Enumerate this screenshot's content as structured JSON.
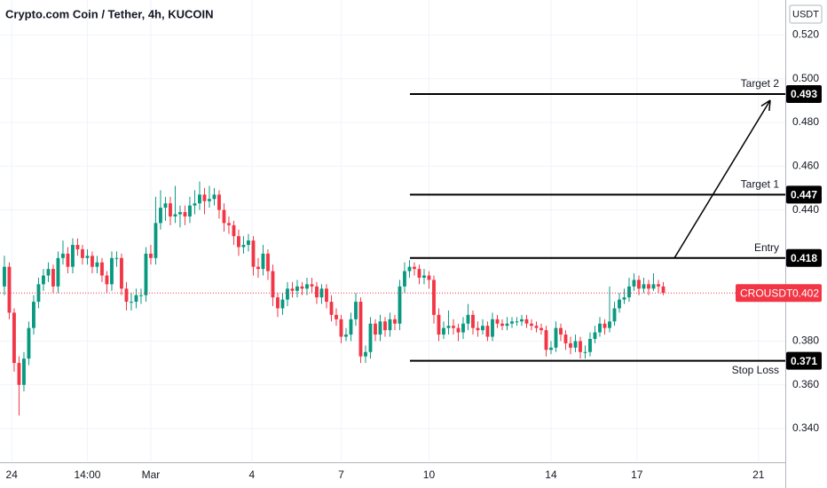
{
  "chart_data": {
    "type": "candlestick",
    "title": "Crypto.com Coin / Tether, 4h, KUCOIN",
    "currency": "USDT",
    "up_color": "#089981",
    "down_color": "#f23645",
    "grid": true,
    "candles": [
      [
        0.405,
        0.419,
        0.401,
        0.414
      ],
      [
        0.414,
        0.416,
        0.39,
        0.393
      ],
      [
        0.393,
        0.395,
        0.366,
        0.37
      ],
      [
        0.37,
        0.373,
        0.346,
        0.36
      ],
      [
        0.36,
        0.375,
        0.357,
        0.372
      ],
      [
        0.372,
        0.389,
        0.369,
        0.386
      ],
      [
        0.386,
        0.401,
        0.383,
        0.398
      ],
      [
        0.398,
        0.409,
        0.395,
        0.406
      ],
      [
        0.406,
        0.413,
        0.403,
        0.41
      ],
      [
        0.41,
        0.416,
        0.407,
        0.413
      ],
      [
        0.413,
        0.415,
        0.402,
        0.405
      ],
      [
        0.405,
        0.421,
        0.402,
        0.418
      ],
      [
        0.418,
        0.426,
        0.415,
        0.42
      ],
      [
        0.42,
        0.423,
        0.411,
        0.414
      ],
      [
        0.414,
        0.427,
        0.411,
        0.424
      ],
      [
        0.424,
        0.427,
        0.419,
        0.422
      ],
      [
        0.422,
        0.424,
        0.415,
        0.418
      ],
      [
        0.418,
        0.422,
        0.415,
        0.419
      ],
      [
        0.419,
        0.421,
        0.411,
        0.414
      ],
      [
        0.414,
        0.419,
        0.411,
        0.416
      ],
      [
        0.416,
        0.418,
        0.407,
        0.41
      ],
      [
        0.41,
        0.412,
        0.402,
        0.406
      ],
      [
        0.406,
        0.421,
        0.403,
        0.418
      ],
      [
        0.418,
        0.421,
        0.414,
        0.418
      ],
      [
        0.418,
        0.42,
        0.401,
        0.404
      ],
      [
        0.404,
        0.407,
        0.394,
        0.398
      ],
      [
        0.398,
        0.402,
        0.394,
        0.398
      ],
      [
        0.398,
        0.404,
        0.395,
        0.401
      ],
      [
        0.401,
        0.404,
        0.397,
        0.401
      ],
      [
        0.401,
        0.423,
        0.398,
        0.42
      ],
      [
        0.42,
        0.424,
        0.415,
        0.418
      ],
      [
        0.418,
        0.446,
        0.415,
        0.434
      ],
      [
        0.434,
        0.449,
        0.431,
        0.441
      ],
      [
        0.441,
        0.446,
        0.435,
        0.443
      ],
      [
        0.443,
        0.446,
        0.433,
        0.437
      ],
      [
        0.437,
        0.451,
        0.434,
        0.438
      ],
      [
        0.438,
        0.442,
        0.432,
        0.439
      ],
      [
        0.439,
        0.442,
        0.433,
        0.437
      ],
      [
        0.437,
        0.446,
        0.434,
        0.442
      ],
      [
        0.442,
        0.449,
        0.438,
        0.443
      ],
      [
        0.443,
        0.453,
        0.44,
        0.447
      ],
      [
        0.447,
        0.45,
        0.438,
        0.444
      ],
      [
        0.444,
        0.451,
        0.441,
        0.445
      ],
      [
        0.445,
        0.45,
        0.442,
        0.447
      ],
      [
        0.447,
        0.449,
        0.436,
        0.44
      ],
      [
        0.44,
        0.443,
        0.43,
        0.434
      ],
      [
        0.434,
        0.437,
        0.429,
        0.433
      ],
      [
        0.433,
        0.435,
        0.424,
        0.428
      ],
      [
        0.428,
        0.431,
        0.419,
        0.423
      ],
      [
        0.423,
        0.428,
        0.42,
        0.424
      ],
      [
        0.424,
        0.429,
        0.421,
        0.426
      ],
      [
        0.426,
        0.428,
        0.41,
        0.414
      ],
      [
        0.414,
        0.418,
        0.409,
        0.413
      ],
      [
        0.413,
        0.424,
        0.41,
        0.42
      ],
      [
        0.42,
        0.422,
        0.408,
        0.412
      ],
      [
        0.412,
        0.415,
        0.396,
        0.4
      ],
      [
        0.4,
        0.402,
        0.391,
        0.395
      ],
      [
        0.395,
        0.402,
        0.392,
        0.399
      ],
      [
        0.399,
        0.407,
        0.396,
        0.404
      ],
      [
        0.404,
        0.407,
        0.4,
        0.403
      ],
      [
        0.403,
        0.408,
        0.4,
        0.405
      ],
      [
        0.405,
        0.407,
        0.401,
        0.404
      ],
      [
        0.404,
        0.409,
        0.401,
        0.406
      ],
      [
        0.406,
        0.409,
        0.402,
        0.405
      ],
      [
        0.405,
        0.407,
        0.397,
        0.4
      ],
      [
        0.4,
        0.406,
        0.397,
        0.404
      ],
      [
        0.404,
        0.406,
        0.395,
        0.398
      ],
      [
        0.398,
        0.401,
        0.389,
        0.392
      ],
      [
        0.392,
        0.395,
        0.387,
        0.39
      ],
      [
        0.39,
        0.392,
        0.379,
        0.382
      ],
      [
        0.382,
        0.386,
        0.38,
        0.383
      ],
      [
        0.383,
        0.393,
        0.38,
        0.39
      ],
      [
        0.39,
        0.402,
        0.387,
        0.398
      ],
      [
        0.398,
        0.4,
        0.37,
        0.373
      ],
      [
        0.373,
        0.378,
        0.37,
        0.375
      ],
      [
        0.375,
        0.391,
        0.372,
        0.388
      ],
      [
        0.388,
        0.39,
        0.38,
        0.383
      ],
      [
        0.383,
        0.392,
        0.38,
        0.389
      ],
      [
        0.389,
        0.391,
        0.382,
        0.385
      ],
      [
        0.385,
        0.393,
        0.382,
        0.39
      ],
      [
        0.39,
        0.392,
        0.385,
        0.388
      ],
      [
        0.388,
        0.408,
        0.385,
        0.405
      ],
      [
        0.405,
        0.416,
        0.402,
        0.412
      ],
      [
        0.412,
        0.417,
        0.409,
        0.414
      ],
      [
        0.414,
        0.416,
        0.41,
        0.413
      ],
      [
        0.413,
        0.415,
        0.406,
        0.409
      ],
      [
        0.409,
        0.413,
        0.406,
        0.41
      ],
      [
        0.41,
        0.412,
        0.404,
        0.408
      ],
      [
        0.408,
        0.41,
        0.388,
        0.392
      ],
      [
        0.392,
        0.395,
        0.38,
        0.383
      ],
      [
        0.383,
        0.389,
        0.381,
        0.386
      ],
      [
        0.386,
        0.394,
        0.383,
        0.387
      ],
      [
        0.387,
        0.39,
        0.383,
        0.386
      ],
      [
        0.386,
        0.388,
        0.38,
        0.384
      ],
      [
        0.384,
        0.391,
        0.381,
        0.388
      ],
      [
        0.388,
        0.397,
        0.385,
        0.392
      ],
      [
        0.392,
        0.394,
        0.383,
        0.386
      ],
      [
        0.386,
        0.389,
        0.382,
        0.385
      ],
      [
        0.385,
        0.39,
        0.383,
        0.387
      ],
      [
        0.387,
        0.389,
        0.38,
        0.382
      ],
      [
        0.382,
        0.393,
        0.38,
        0.39
      ],
      [
        0.39,
        0.392,
        0.386,
        0.388
      ],
      [
        0.388,
        0.39,
        0.385,
        0.387
      ],
      [
        0.387,
        0.391,
        0.385,
        0.388
      ],
      [
        0.388,
        0.391,
        0.386,
        0.389
      ],
      [
        0.389,
        0.391,
        0.387,
        0.389
      ],
      [
        0.389,
        0.392,
        0.387,
        0.39
      ],
      [
        0.39,
        0.392,
        0.386,
        0.388
      ],
      [
        0.388,
        0.39,
        0.385,
        0.387
      ],
      [
        0.387,
        0.389,
        0.384,
        0.386
      ],
      [
        0.386,
        0.388,
        0.383,
        0.385
      ],
      [
        0.385,
        0.387,
        0.373,
        0.376
      ],
      [
        0.376,
        0.38,
        0.374,
        0.377
      ],
      [
        0.377,
        0.389,
        0.375,
        0.386
      ],
      [
        0.386,
        0.388,
        0.38,
        0.383
      ],
      [
        0.383,
        0.385,
        0.376,
        0.379
      ],
      [
        0.379,
        0.382,
        0.374,
        0.377
      ],
      [
        0.377,
        0.383,
        0.375,
        0.38
      ],
      [
        0.38,
        0.382,
        0.372,
        0.375
      ],
      [
        0.375,
        0.378,
        0.372,
        0.375
      ],
      [
        0.375,
        0.384,
        0.373,
        0.381
      ],
      [
        0.381,
        0.387,
        0.379,
        0.384
      ],
      [
        0.384,
        0.391,
        0.382,
        0.388
      ],
      [
        0.388,
        0.39,
        0.383,
        0.386
      ],
      [
        0.386,
        0.405,
        0.384,
        0.389
      ],
      [
        0.389,
        0.398,
        0.387,
        0.395
      ],
      [
        0.395,
        0.402,
        0.393,
        0.399
      ],
      [
        0.399,
        0.404,
        0.397,
        0.4
      ],
      [
        0.4,
        0.409,
        0.398,
        0.405
      ],
      [
        0.405,
        0.411,
        0.403,
        0.408
      ],
      [
        0.408,
        0.41,
        0.401,
        0.404
      ],
      [
        0.404,
        0.409,
        0.402,
        0.406
      ],
      [
        0.406,
        0.408,
        0.401,
        0.404
      ],
      [
        0.404,
        0.411,
        0.403,
        0.406
      ],
      [
        0.406,
        0.408,
        0.402,
        0.405
      ],
      [
        0.405,
        0.407,
        0.401,
        0.402
      ]
    ],
    "xlim": [
      -0.9,
      160
    ],
    "xticks": [
      {
        "value": 1.5,
        "label": "24"
      },
      {
        "value": 17,
        "label": "14:00"
      },
      {
        "value": 30,
        "label": "Mar"
      },
      {
        "value": 50.7,
        "label": "4"
      },
      {
        "value": 69,
        "label": "7"
      },
      {
        "value": 87,
        "label": "10"
      },
      {
        "value": 112,
        "label": "14"
      },
      {
        "value": 129.6,
        "label": "17"
      },
      {
        "value": 154.5,
        "label": "21"
      }
    ],
    "ylim": [
      0.325,
      0.536
    ],
    "yticks": [
      {
        "value": 0.34,
        "label": "0.340"
      },
      {
        "value": 0.36,
        "label": "0.360"
      },
      {
        "value": 0.38,
        "label": "0.380"
      },
      {
        "value": 0.44,
        "label": "0.440"
      },
      {
        "value": 0.46,
        "label": "0.460"
      },
      {
        "value": 0.48,
        "label": "0.480"
      },
      {
        "value": 0.5,
        "label": "0.500"
      },
      {
        "value": 0.52,
        "label": "0.520"
      }
    ],
    "levels": [
      {
        "name": "Target 2",
        "value": 0.493
      },
      {
        "name": "Target 1",
        "value": 0.447
      },
      {
        "name": "Entry",
        "value": 0.418
      },
      {
        "name": "Stop Loss",
        "value": 0.371
      }
    ],
    "last_price": {
      "name": "CROUSDT",
      "value": 0.402,
      "color": "#f23645"
    }
  }
}
